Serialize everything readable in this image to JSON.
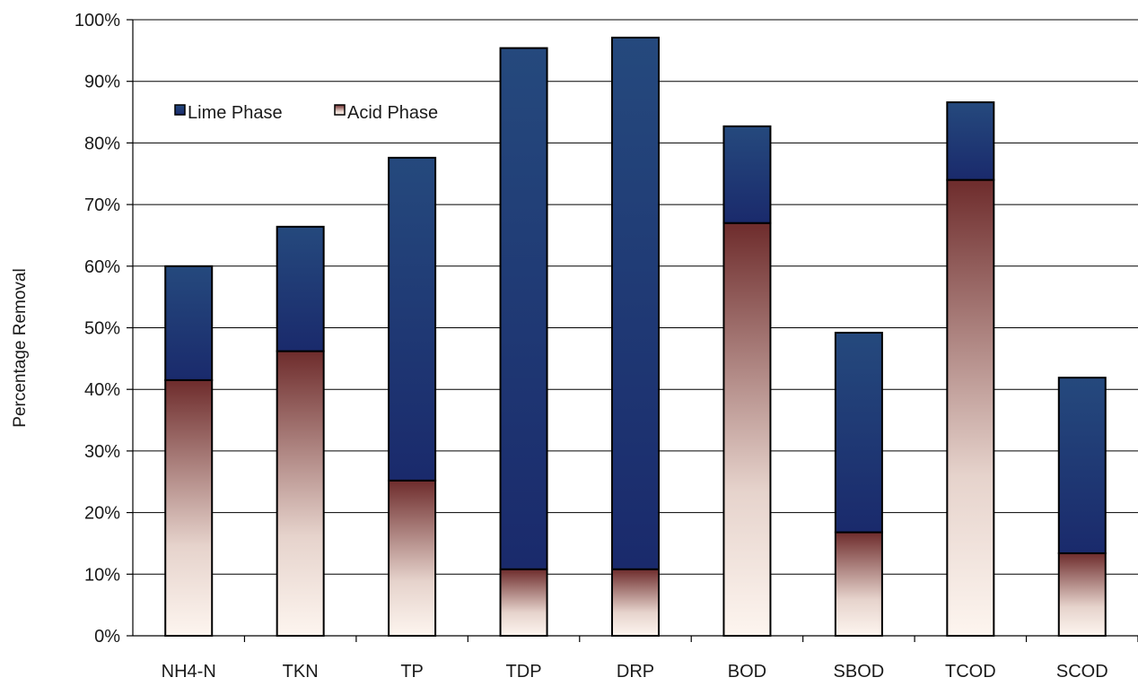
{
  "chart_data": {
    "type": "bar",
    "stacked": true,
    "title": "",
    "xlabel": "",
    "ylabel": "Percentage Removal",
    "ylim": [
      0,
      100
    ],
    "yticks": [
      "0%",
      "10%",
      "20%",
      "30%",
      "40%",
      "50%",
      "60%",
      "70%",
      "80%",
      "90%",
      "100%"
    ],
    "grid": true,
    "legend": "top-left",
    "categories": [
      "NH4-N",
      "TKN",
      "TP",
      "TDP",
      "DRP",
      "BOD",
      "SBOD",
      "TCOD",
      "SCOD"
    ],
    "series": [
      {
        "name": "Acid Phase",
        "position": "bottom",
        "colors": [
          "#fdf5ef",
          "#6e2c2c"
        ],
        "values": [
          41.5,
          46.2,
          25.2,
          10.8,
          10.8,
          67.0,
          16.8,
          74.0,
          13.4
        ]
      },
      {
        "name": "Lime Phase",
        "position": "top",
        "colors": [
          "#1a2a6c",
          "#25497d"
        ],
        "values": [
          18.5,
          20.2,
          52.4,
          84.6,
          86.3,
          15.7,
          32.4,
          12.6,
          28.5
        ]
      }
    ],
    "totals": [
      60.0,
      66.4,
      77.6,
      95.4,
      97.1,
      82.7,
      49.2,
      86.6,
      41.9
    ]
  }
}
